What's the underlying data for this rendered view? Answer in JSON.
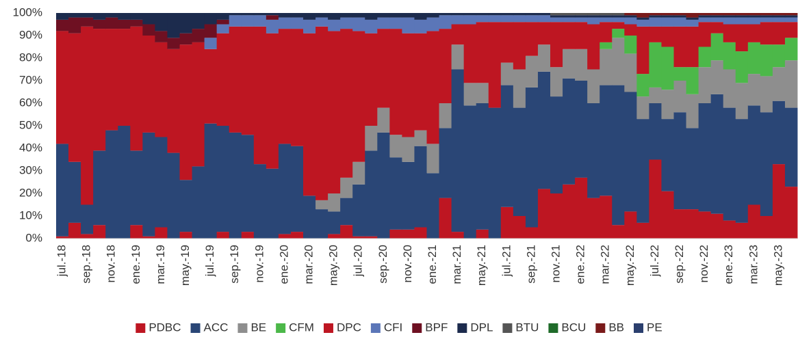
{
  "chart_data": {
    "type": "stacked_bar",
    "categories": [
      "jul.-18",
      null,
      "sep.-18",
      null,
      "nov.-18",
      null,
      "ene.-19",
      null,
      "mar.-19",
      null,
      "may.-19",
      null,
      "jul.-19",
      null,
      "sep.-19",
      null,
      "nov.-19",
      null,
      "ene.-20",
      null,
      "mar.-20",
      null,
      "may.-20",
      null,
      "jul.-20",
      null,
      "sep.-20",
      null,
      "nov.-20",
      null,
      "ene.-21",
      null,
      "mar.-21",
      null,
      "may.-21",
      null,
      "jul.-21",
      null,
      "sep.-21",
      null,
      "nov.-21",
      null,
      "ene.-22",
      null,
      "mar.-22",
      null,
      "may.-22",
      null,
      "jul.-22",
      null,
      "sep.-22",
      null,
      "nov.-22",
      null,
      "ene.-23",
      null,
      "mar.-23",
      null,
      "may.-23",
      null
    ],
    "series": [
      {
        "name": "PDBC",
        "color": "#be1622",
        "values": [
          1,
          7,
          2,
          6,
          0,
          0,
          6,
          1,
          5,
          0,
          3,
          0,
          0,
          3,
          0,
          3,
          0,
          0,
          2,
          3,
          0,
          0,
          2,
          6,
          1,
          1,
          0,
          4,
          4,
          5,
          0,
          18,
          3,
          0,
          4,
          0,
          14,
          10,
          5,
          22,
          20,
          24,
          27,
          18,
          19,
          6,
          12,
          7,
          35,
          21,
          13,
          13,
          12,
          11,
          8,
          7,
          15,
          10,
          33,
          23
        ]
      },
      {
        "name": "ACC",
        "color": "#2a4676",
        "values": [
          41,
          27,
          13,
          33,
          48,
          50,
          33,
          46,
          40,
          38,
          23,
          32,
          51,
          47,
          47,
          43,
          33,
          31,
          40,
          38,
          19,
          13,
          10,
          12,
          23,
          38,
          47,
          32,
          30,
          36,
          29,
          31,
          72,
          59,
          56,
          58,
          54,
          48,
          62,
          52,
          43,
          47,
          43,
          42,
          49,
          62,
          53,
          46,
          25,
          32,
          43,
          36,
          48,
          53,
          50,
          46,
          44,
          46,
          28,
          35
        ]
      },
      {
        "name": "BE",
        "color": "#8e8e8e",
        "values": [
          0,
          0,
          0,
          0,
          0,
          0,
          0,
          0,
          0,
          0,
          0,
          0,
          0,
          0,
          0,
          0,
          0,
          0,
          0,
          0,
          0,
          4,
          8,
          9,
          10,
          11,
          11,
          10,
          11,
          7,
          13,
          11,
          11,
          10,
          9,
          0,
          10,
          17,
          14,
          12,
          13,
          13,
          14,
          15,
          16,
          21,
          17,
          10,
          7,
          13,
          14,
          15,
          16,
          15,
          17,
          16,
          14,
          16,
          15,
          21
        ]
      },
      {
        "name": "CFM",
        "color": "#4cb849",
        "values": [
          0,
          0,
          0,
          0,
          0,
          0,
          0,
          0,
          0,
          0,
          0,
          0,
          0,
          0,
          0,
          0,
          0,
          0,
          0,
          0,
          0,
          0,
          0,
          0,
          0,
          0,
          0,
          0,
          0,
          0,
          0,
          0,
          0,
          0,
          0,
          0,
          0,
          0,
          0,
          0,
          0,
          0,
          0,
          0,
          3,
          4,
          8,
          10,
          20,
          19,
          6,
          12,
          9,
          12,
          12,
          14,
          14,
          14,
          10,
          10
        ]
      },
      {
        "name": "DPC",
        "color": "#be1622",
        "values": [
          50,
          57,
          79,
          54,
          45,
          43,
          55,
          43,
          42,
          46,
          60,
          55,
          33,
          41,
          47,
          48,
          61,
          60,
          51,
          52,
          72,
          77,
          72,
          66,
          58,
          41,
          35,
          47,
          46,
          43,
          50,
          33,
          9,
          26,
          27,
          38,
          18,
          21,
          15,
          10,
          20,
          12,
          12,
          20,
          9,
          3,
          5,
          21,
          7,
          9,
          18,
          18,
          11,
          5,
          8,
          12,
          8,
          10,
          10,
          7
        ]
      },
      {
        "name": "CFI",
        "color": "#5b76b8",
        "values": [
          0,
          0,
          0,
          0,
          0,
          0,
          0,
          0,
          0,
          0,
          0,
          0,
          5,
          4,
          5,
          5,
          5,
          6,
          5,
          5,
          6,
          4,
          5,
          5,
          6,
          6,
          5,
          5,
          7,
          6,
          6,
          6,
          4,
          4,
          3,
          3,
          3,
          3,
          3,
          3,
          2,
          2,
          2,
          3,
          2,
          2,
          3,
          3,
          4,
          4,
          4,
          3,
          2,
          2,
          3,
          3,
          3,
          2,
          2,
          2
        ]
      },
      {
        "name": "BPF",
        "color": "#6e1022",
        "values": [
          5,
          7,
          4,
          4,
          5,
          4,
          3,
          5,
          5,
          5,
          5,
          6,
          6,
          2,
          0,
          0,
          0,
          2,
          0,
          0,
          0,
          0,
          0,
          0,
          0,
          0,
          0,
          0,
          0,
          0,
          0,
          0,
          0,
          0,
          0,
          0,
          0,
          0,
          0,
          0,
          0,
          0,
          0,
          0,
          0,
          0,
          0,
          0,
          0,
          0,
          0,
          0,
          0,
          0,
          0,
          0,
          0,
          0,
          0,
          0
        ]
      },
      {
        "name": "DPL",
        "color": "#1c2b4d",
        "values": [
          3,
          2,
          2,
          3,
          2,
          3,
          3,
          5,
          8,
          11,
          9,
          7,
          5,
          3,
          1,
          1,
          1,
          1,
          2,
          2,
          3,
          2,
          3,
          2,
          2,
          3,
          2,
          2,
          2,
          3,
          2,
          1,
          1,
          1,
          1,
          1,
          1,
          1,
          1,
          1,
          1,
          1,
          1,
          1,
          1,
          1,
          1,
          1,
          1,
          1,
          1,
          1,
          1,
          1,
          1,
          1,
          1,
          1,
          1,
          1
        ]
      },
      {
        "name": "BTU",
        "color": "#555555",
        "values": [
          0,
          0,
          0,
          0,
          0,
          0,
          0,
          0,
          0,
          0,
          0,
          0,
          0,
          0,
          0,
          0,
          0,
          0,
          0,
          0,
          0,
          0,
          0,
          0,
          0,
          0,
          0,
          0,
          0,
          0,
          0,
          0,
          0,
          0,
          0,
          0,
          0,
          0,
          0,
          0,
          1,
          1,
          1,
          1,
          1,
          1,
          0,
          0,
          0,
          0,
          0,
          0,
          0,
          0,
          0,
          0,
          0,
          0,
          0,
          0
        ]
      },
      {
        "name": "BCU",
        "color": "#1f6b2a",
        "values": [
          0,
          0,
          0,
          0,
          0,
          0,
          0,
          0,
          0,
          0,
          0,
          0,
          0,
          0,
          0,
          0,
          0,
          0,
          0,
          0,
          0,
          0,
          0,
          0,
          0,
          0,
          0,
          0,
          0,
          0,
          0,
          0,
          0,
          0,
          0,
          0,
          0,
          0,
          0,
          0,
          0,
          0,
          0,
          0,
          0,
          0,
          0,
          0,
          0,
          0,
          0,
          0,
          0,
          0,
          0,
          0,
          0,
          0,
          0,
          0
        ]
      },
      {
        "name": "BB",
        "color": "#7a1a1a",
        "values": [
          0,
          0,
          0,
          0,
          0,
          0,
          0,
          0,
          0,
          0,
          0,
          0,
          0,
          0,
          0,
          0,
          0,
          0,
          0,
          0,
          0,
          0,
          0,
          0,
          0,
          0,
          0,
          0,
          0,
          0,
          0,
          0,
          0,
          0,
          0,
          0,
          0,
          0,
          0,
          0,
          0,
          0,
          0,
          0,
          0,
          0,
          1,
          2,
          1,
          1,
          1,
          2,
          1,
          1,
          1,
          1,
          1,
          1,
          1,
          1
        ]
      },
      {
        "name": "PE",
        "color": "#2b3f6e",
        "values": [
          0,
          0,
          0,
          0,
          0,
          0,
          0,
          0,
          0,
          0,
          0,
          0,
          0,
          0,
          0,
          0,
          0,
          0,
          0,
          0,
          0,
          0,
          0,
          0,
          0,
          0,
          0,
          0,
          0,
          0,
          0,
          0,
          0,
          0,
          0,
          0,
          0,
          0,
          0,
          0,
          0,
          0,
          0,
          0,
          0,
          0,
          0,
          0,
          0,
          0,
          0,
          0,
          0,
          0,
          0,
          0,
          0,
          0,
          0,
          0
        ]
      }
    ],
    "ylim": [
      0,
      100
    ],
    "yticks": [
      {
        "value": 0,
        "label": "0%"
      },
      {
        "value": 10,
        "label": "10%"
      },
      {
        "value": 20,
        "label": "20%"
      },
      {
        "value": 30,
        "label": "30%"
      },
      {
        "value": 40,
        "label": "40%"
      },
      {
        "value": 50,
        "label": "50%"
      },
      {
        "value": 60,
        "label": "60%"
      },
      {
        "value": 70,
        "label": "70%"
      },
      {
        "value": 80,
        "label": "80%"
      },
      {
        "value": 90,
        "label": "90%"
      },
      {
        "value": 100,
        "label": "100%"
      }
    ],
    "grid": false,
    "legend": "bottom"
  }
}
